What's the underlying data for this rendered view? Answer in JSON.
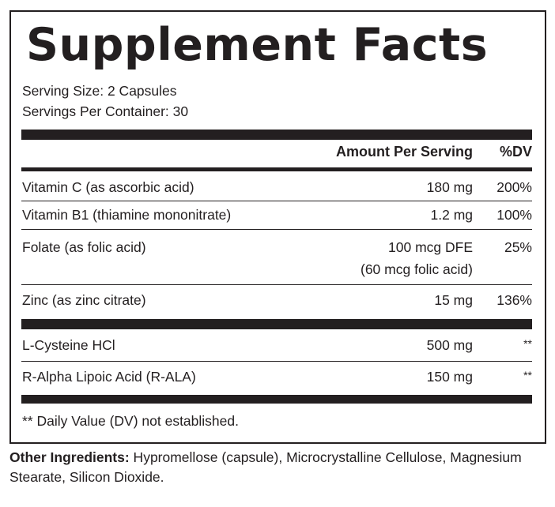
{
  "title": "Supplement Facts",
  "serving_size": "Serving Size: 2 Capsules",
  "servings_per_container": "Servings Per Container: 30",
  "header": {
    "amount": "Amount Per Serving",
    "dv": "%DV"
  },
  "rows": [
    {
      "name": "Vitamin C (as ascorbic acid)",
      "amount": "180 mg",
      "dv": "200%"
    },
    {
      "name": "Vitamin B1 (thiamine mononitrate)",
      "amount": "1.2 mg",
      "dv": "100%"
    },
    {
      "name": "Folate (as folic acid)",
      "amount": "100 mcg DFE",
      "amount2": "(60 mcg folic acid)",
      "dv": "25%"
    },
    {
      "name": "Zinc (as zinc citrate)",
      "amount": "15 mg",
      "dv": "136%"
    },
    {
      "name": "L-Cysteine HCl",
      "amount": "500 mg",
      "dv": "**"
    },
    {
      "name": "R-Alpha Lipoic Acid (R-ALA)",
      "amount": "150 mg",
      "dv": "**"
    }
  ],
  "footnote": "** Daily Value (DV) not established.",
  "other_ingredients": {
    "label": "Other Ingredients:",
    "text": " Hypromellose (capsule), Microcrystalline Cellulose, Magnesium Stearate, Silicon Dioxide."
  }
}
